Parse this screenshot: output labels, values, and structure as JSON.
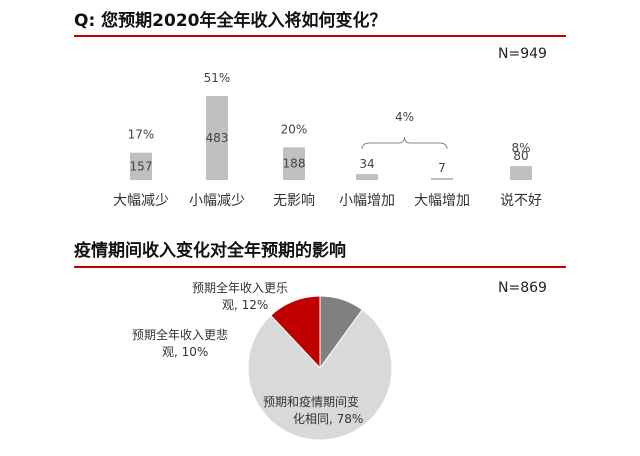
{
  "chart1": {
    "title": "Q: 您预期2020年全年收入将如何变化？",
    "n_label": "N=949",
    "chart_data": {
      "type": "bar",
      "categories": [
        "大幅减少",
        "小幅减少",
        "无影响",
        "小幅增加",
        "大幅增加",
        "说不好"
      ],
      "values": [
        157,
        483,
        188,
        34,
        7,
        80
      ],
      "percent_labels": [
        "17%",
        "51%",
        "20%",
        "",
        "",
        "8%"
      ],
      "group_annotation": {
        "label": "4%",
        "categories": [
          "小幅增加",
          "大幅增加"
        ]
      },
      "ylim": [
        0,
        483
      ],
      "bar_color": "#c0c0c0"
    }
  },
  "chart2": {
    "title": "疫情期间收入变化对全年预期的影响",
    "n_label": "N=869",
    "chart_data": {
      "type": "pie",
      "labels": [
        "预期全年收入更乐观",
        "预期全年收入更悲观",
        "预期和疫情期间变化相同"
      ],
      "label_lines": [
        [
          "预期全年收入更乐",
          "观, 12%"
        ],
        [
          "预期全年收入更悲",
          "观, 10%"
        ],
        [
          "预期和疫情期间变",
          "化相同, 78%"
        ]
      ],
      "values": [
        12,
        10,
        78
      ],
      "colors": [
        "#c00000",
        "#808080",
        "#d9d9d9"
      ]
    }
  }
}
